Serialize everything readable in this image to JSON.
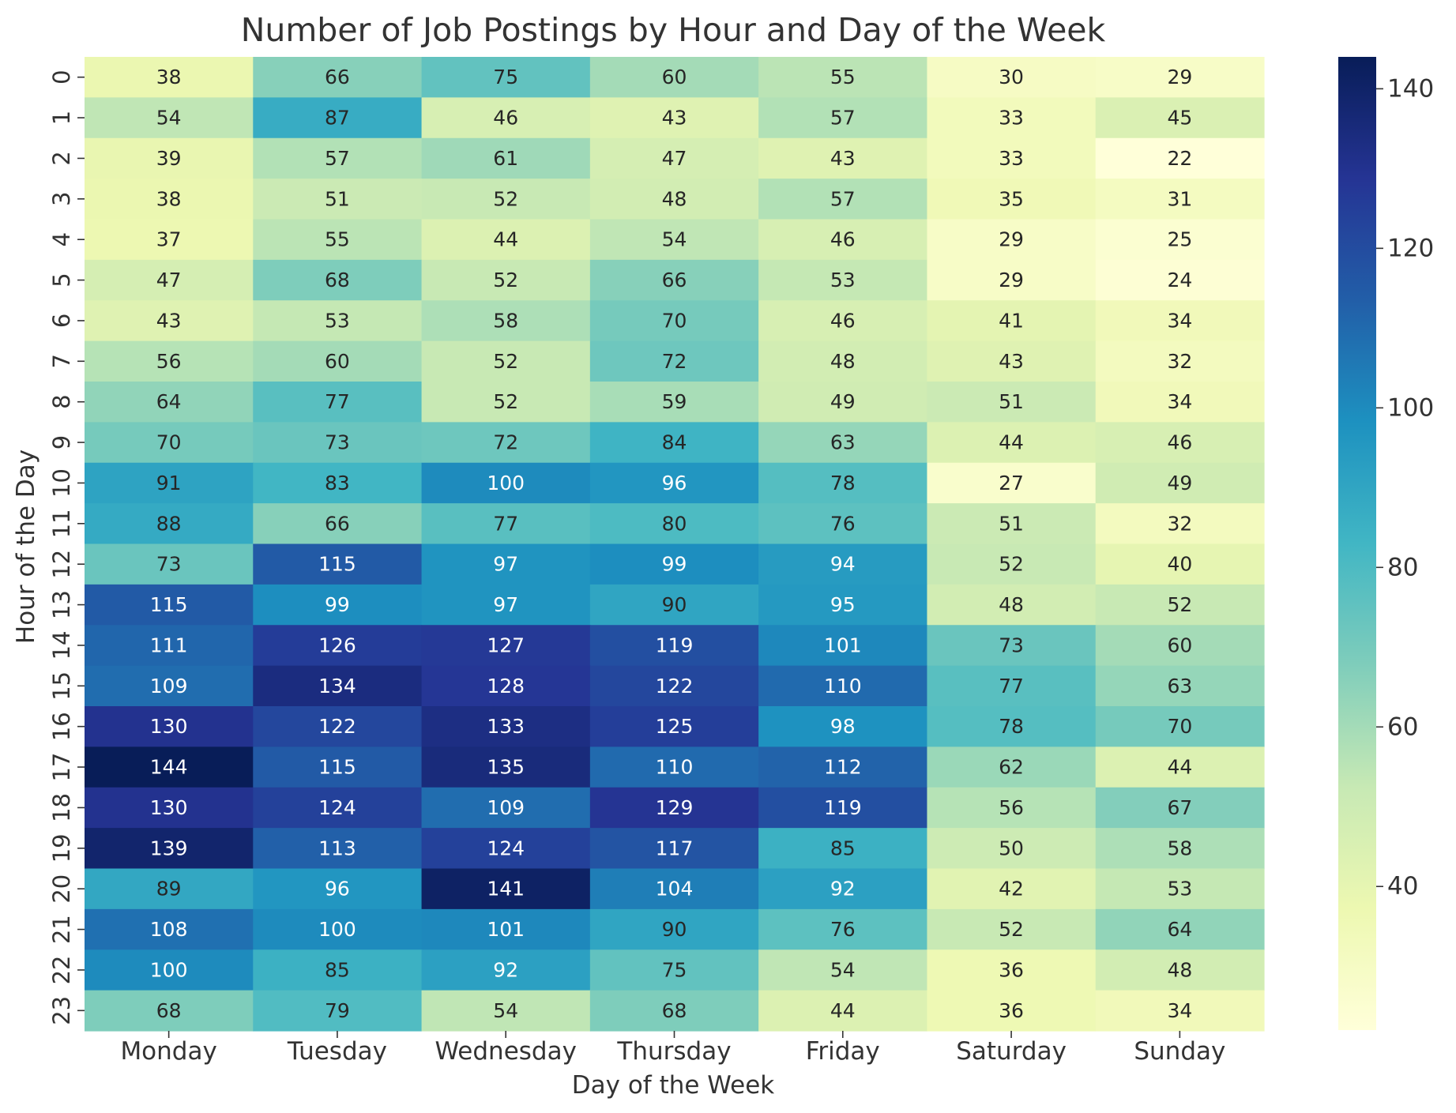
{
  "chart_data": {
    "type": "heatmap",
    "title": "Number of Job Postings by Hour and Day of the Week",
    "xlabel": "Day of the Week",
    "ylabel": "Hour of the Day",
    "x_categories": [
      "Monday",
      "Tuesday",
      "Wednesday",
      "Thursday",
      "Friday",
      "Saturday",
      "Sunday"
    ],
    "y_categories": [
      "0",
      "1",
      "2",
      "3",
      "4",
      "5",
      "6",
      "7",
      "8",
      "9",
      "10",
      "11",
      "12",
      "13",
      "14",
      "15",
      "16",
      "17",
      "18",
      "19",
      "20",
      "21",
      "22",
      "23"
    ],
    "values": [
      [
        38,
        66,
        75,
        60,
        55,
        30,
        29
      ],
      [
        54,
        87,
        46,
        43,
        57,
        33,
        45
      ],
      [
        39,
        57,
        61,
        47,
        43,
        33,
        22
      ],
      [
        38,
        51,
        52,
        48,
        57,
        35,
        31
      ],
      [
        37,
        55,
        44,
        54,
        46,
        29,
        25
      ],
      [
        47,
        68,
        52,
        66,
        53,
        29,
        24
      ],
      [
        43,
        53,
        58,
        70,
        46,
        41,
        34
      ],
      [
        56,
        60,
        52,
        72,
        48,
        43,
        32
      ],
      [
        64,
        77,
        52,
        59,
        49,
        51,
        34
      ],
      [
        70,
        73,
        72,
        84,
        63,
        44,
        46
      ],
      [
        91,
        83,
        100,
        96,
        78,
        27,
        49
      ],
      [
        88,
        66,
        77,
        80,
        76,
        51,
        32
      ],
      [
        73,
        115,
        97,
        99,
        94,
        52,
        40
      ],
      [
        115,
        99,
        97,
        90,
        95,
        48,
        52
      ],
      [
        111,
        126,
        127,
        119,
        101,
        73,
        60
      ],
      [
        109,
        134,
        128,
        122,
        110,
        77,
        63
      ],
      [
        130,
        122,
        133,
        125,
        98,
        78,
        70
      ],
      [
        144,
        115,
        135,
        110,
        112,
        62,
        44
      ],
      [
        130,
        124,
        109,
        129,
        119,
        56,
        67
      ],
      [
        139,
        113,
        124,
        117,
        85,
        50,
        58
      ],
      [
        89,
        96,
        141,
        104,
        92,
        42,
        53
      ],
      [
        108,
        100,
        101,
        90,
        76,
        52,
        64
      ],
      [
        100,
        85,
        92,
        75,
        54,
        36,
        48
      ],
      [
        68,
        79,
        54,
        68,
        44,
        36,
        34
      ]
    ],
    "value_range": [
      22,
      144
    ],
    "colormap": "YlGnBu",
    "colorbar_ticks": [
      40,
      60,
      80,
      100,
      120,
      140
    ],
    "annotations": true
  }
}
